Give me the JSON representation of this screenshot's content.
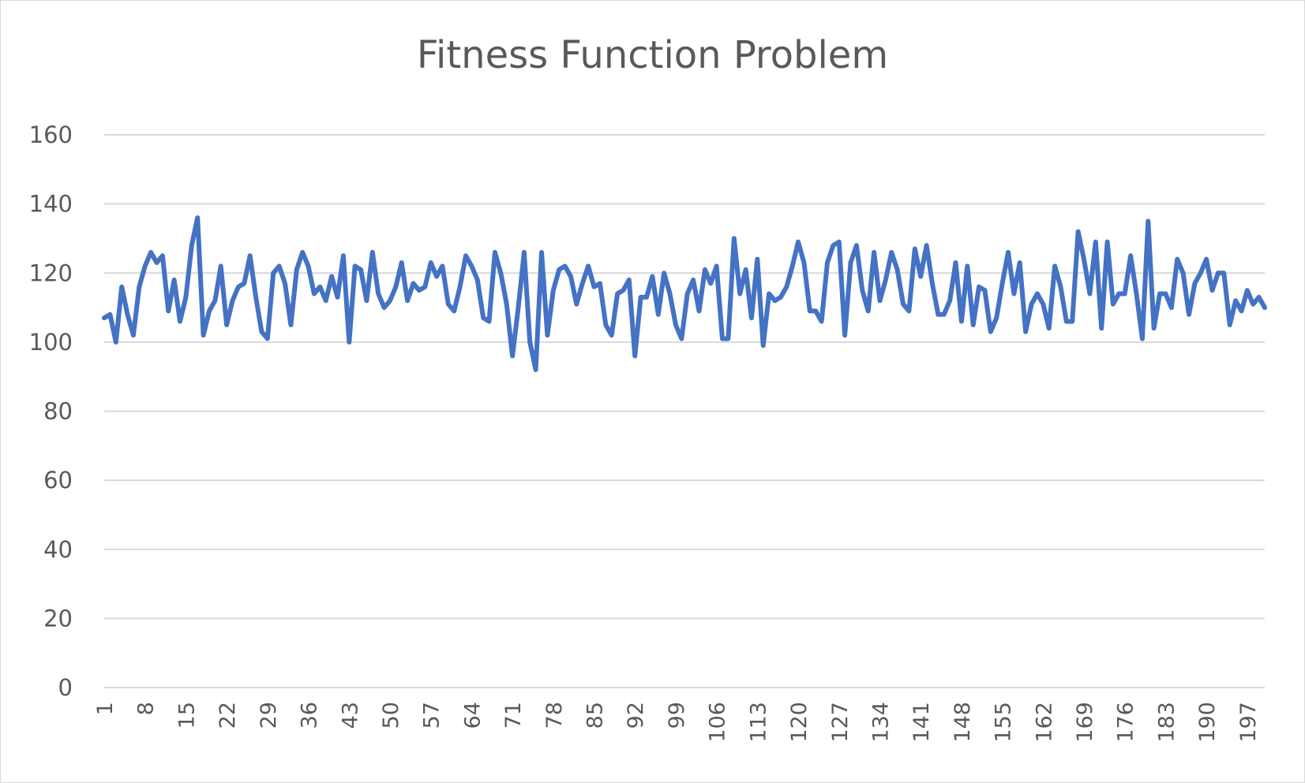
{
  "chart_data": {
    "type": "line",
    "title": "Fitness Function Problem",
    "xlabel": "",
    "ylabel": "",
    "ylim": [
      0,
      160
    ],
    "yticks": [
      0,
      20,
      40,
      60,
      80,
      100,
      120,
      140,
      160
    ],
    "x_tick_labels": [
      "1",
      "8",
      "15",
      "22",
      "29",
      "36",
      "43",
      "50",
      "57",
      "64",
      "71",
      "78",
      "85",
      "92",
      "99",
      "106",
      "113",
      "120",
      "127",
      "134",
      "141",
      "148",
      "155",
      "162",
      "169",
      "176",
      "183",
      "190",
      "197"
    ],
    "x": [
      1,
      2,
      3,
      4,
      5,
      6,
      7,
      8,
      9,
      10,
      11,
      12,
      13,
      14,
      15,
      16,
      17,
      18,
      19,
      20,
      21,
      22,
      23,
      24,
      25,
      26,
      27,
      28,
      29,
      30,
      31,
      32,
      33,
      34,
      35,
      36,
      37,
      38,
      39,
      40,
      41,
      42,
      43,
      44,
      45,
      46,
      47,
      48,
      49,
      50,
      51,
      52,
      53,
      54,
      55,
      56,
      57,
      58,
      59,
      60,
      61,
      62,
      63,
      64,
      65,
      66,
      67,
      68,
      69,
      70,
      71,
      72,
      73,
      74,
      75,
      76,
      77,
      78,
      79,
      80,
      81,
      82,
      83,
      84,
      85,
      86,
      87,
      88,
      89,
      90,
      91,
      92,
      93,
      94,
      95,
      96,
      97,
      98,
      99,
      100,
      101,
      102,
      103,
      104,
      105,
      106,
      107,
      108,
      109,
      110,
      111,
      112,
      113,
      114,
      115,
      116,
      117,
      118,
      119,
      120,
      121,
      122,
      123,
      124,
      125,
      126,
      127,
      128,
      129,
      130,
      131,
      132,
      133,
      134,
      135,
      136,
      137,
      138,
      139,
      140,
      141,
      142,
      143,
      144,
      145,
      146,
      147,
      148,
      149,
      150,
      151,
      152,
      153,
      154,
      155,
      156,
      157,
      158,
      159,
      160,
      161,
      162,
      163,
      164,
      165,
      166,
      167,
      168,
      169,
      170,
      171,
      172,
      173,
      174,
      175,
      176,
      177,
      178,
      179,
      180,
      181,
      182,
      183,
      184,
      185,
      186,
      187,
      188,
      189,
      190,
      191,
      192,
      193,
      194,
      195,
      196,
      197,
      198,
      199,
      200
    ],
    "series": [
      {
        "name": "",
        "color": "#4472c4",
        "values": [
          107,
          108,
          100,
          116,
          108,
          102,
          116,
          122,
          126,
          123,
          125,
          109,
          118,
          106,
          113,
          128,
          136,
          102,
          109,
          112,
          122,
          105,
          112,
          116,
          117,
          125,
          113,
          103,
          101,
          120,
          122,
          117,
          105,
          121,
          126,
          122,
          114,
          116,
          112,
          119,
          113,
          125,
          100,
          122,
          121,
          112,
          126,
          114,
          110,
          112,
          116,
          123,
          112,
          117,
          115,
          116,
          123,
          119,
          122,
          111,
          109,
          116,
          125,
          122,
          118,
          107,
          106,
          126,
          120,
          111,
          96,
          110,
          126,
          100,
          92,
          126,
          102,
          115,
          121,
          122,
          119,
          111,
          117,
          122,
          116,
          117,
          105,
          102,
          114,
          115,
          118,
          96,
          113,
          113,
          119,
          108,
          120,
          114,
          105,
          101,
          114,
          118,
          109,
          121,
          117,
          122,
          101,
          101,
          130,
          114,
          121,
          107,
          124,
          99,
          114,
          112,
          113,
          116,
          122,
          129,
          123,
          109,
          109,
          106,
          123,
          128,
          129,
          102,
          123,
          128,
          115,
          109,
          126,
          112,
          118,
          126,
          121,
          111,
          109,
          127,
          119,
          128,
          117,
          108,
          108,
          112,
          123,
          106,
          122,
          105,
          116,
          115,
          103,
          107,
          117,
          126,
          114,
          123,
          103,
          111,
          114,
          111,
          104,
          122,
          116,
          106,
          106,
          132,
          124,
          114,
          129,
          104,
          129,
          111,
          114,
          114,
          125,
          114,
          101,
          135,
          104,
          114,
          114,
          110,
          124,
          120,
          108,
          117,
          120,
          124,
          115,
          120,
          120,
          105,
          112,
          109,
          115,
          111,
          113,
          110
        ]
      }
    ]
  }
}
